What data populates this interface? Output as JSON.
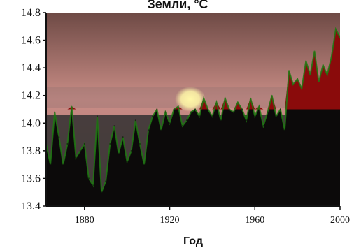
{
  "chart_data": {
    "type": "area",
    "title": "Земли, °C",
    "xlabel": "Год",
    "ylabel": "",
    "xlim": [
      1862,
      2000
    ],
    "ylim": [
      13.4,
      14.8
    ],
    "xticks": [
      {
        "value": 1880,
        "label": "1880"
      },
      {
        "value": 1920,
        "label": "1920"
      },
      {
        "value": 1960,
        "label": "1960"
      },
      {
        "value": 2000,
        "label": "2000"
      }
    ],
    "yticks": [
      {
        "value": 13.4,
        "label": "13.4"
      },
      {
        "value": 13.6,
        "label": "13.6"
      },
      {
        "value": 13.8,
        "label": "13.8"
      },
      {
        "value": 14.0,
        "label": "14.0"
      },
      {
        "value": 14.2,
        "label": "14.2"
      },
      {
        "value": 14.4,
        "label": "14.4"
      },
      {
        "value": 14.6,
        "label": "14.6"
      },
      {
        "value": 14.8,
        "label": "14.8"
      }
    ],
    "baseline": 14.1,
    "series": [
      {
        "x": [
          1862,
          1864,
          1866,
          1868,
          1870,
          1872,
          1874,
          1876,
          1878,
          1880,
          1882,
          1884,
          1886,
          1888,
          1890,
          1892,
          1894,
          1896,
          1898,
          1900,
          1902,
          1904,
          1906,
          1908,
          1910,
          1912,
          1914,
          1916,
          1918,
          1920,
          1922,
          1924,
          1926,
          1928,
          1930,
          1932,
          1934,
          1936,
          1938,
          1940,
          1942,
          1944,
          1946,
          1948,
          1950,
          1952,
          1954,
          1956,
          1958,
          1960,
          1962,
          1964,
          1966,
          1968,
          1970,
          1972,
          1974,
          1976,
          1978,
          1980,
          1982,
          1984,
          1986,
          1988,
          1990,
          1992,
          1994,
          1996,
          1998,
          2000
        ],
        "values": [
          13.85,
          13.7,
          14.08,
          13.9,
          13.7,
          13.85,
          14.12,
          13.75,
          13.8,
          13.85,
          13.6,
          13.55,
          14.05,
          13.5,
          13.58,
          13.85,
          13.98,
          13.78,
          13.9,
          13.72,
          13.8,
          14.02,
          13.85,
          13.7,
          13.95,
          14.05,
          14.1,
          13.95,
          14.08,
          14.0,
          14.1,
          14.12,
          13.98,
          14.02,
          14.08,
          14.1,
          14.05,
          14.18,
          14.1,
          14.05,
          14.15,
          14.02,
          14.18,
          14.1,
          14.08,
          14.15,
          14.1,
          14.02,
          14.18,
          14.05,
          14.12,
          13.98,
          14.08,
          14.2,
          14.05,
          14.1,
          13.95,
          14.38,
          14.28,
          14.32,
          14.25,
          14.45,
          14.35,
          14.52,
          14.3,
          14.42,
          14.35,
          14.48,
          14.68,
          14.62
        ]
      }
    ]
  },
  "colors": {
    "sky_top": "#6e4a45",
    "sky_mid": "#c98d86",
    "sky_low": "#b27a78",
    "haze": "#8f6f70",
    "sea": "#3a3535",
    "sun": "#fff7a8",
    "area_below": "#0c0a0a",
    "area_above_red": "#8a0b0b",
    "area_above_green": "#1f7a12"
  }
}
